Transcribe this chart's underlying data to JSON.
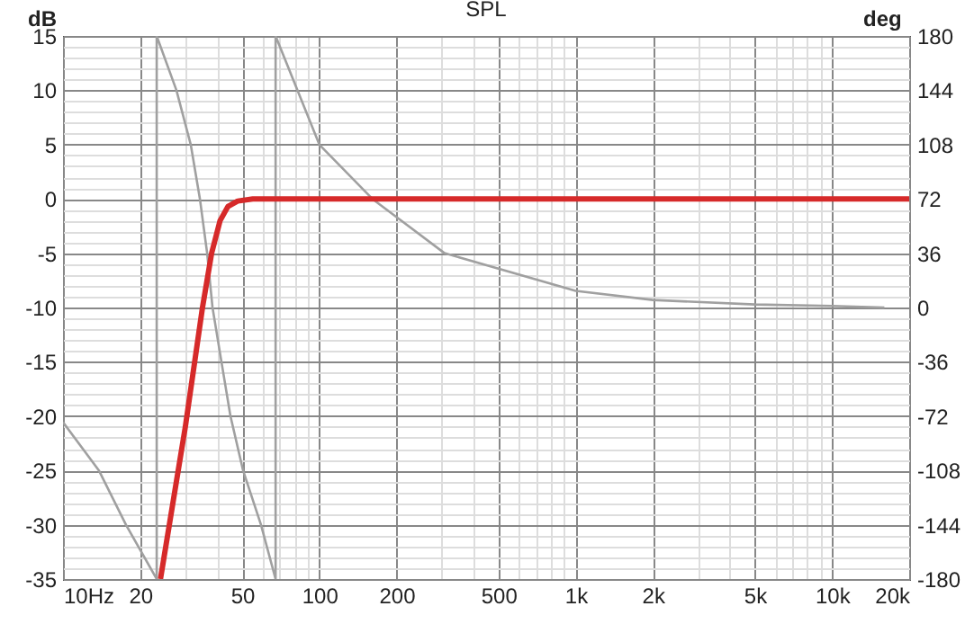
{
  "chart_data": {
    "type": "line",
    "title": "SPL",
    "ylabel": "dB",
    "y2label": "deg",
    "log": "x",
    "grid": true,
    "xlim": [
      10,
      20000
    ],
    "xticks": [
      {
        "value": 10,
        "label": "10Hz"
      },
      {
        "value": 20,
        "label": "20"
      },
      {
        "value": 30,
        "label": null
      },
      {
        "value": 40,
        "label": null
      },
      {
        "value": 50,
        "label": "50"
      },
      {
        "value": 60,
        "label": null
      },
      {
        "value": 70,
        "label": null
      },
      {
        "value": 80,
        "label": null
      },
      {
        "value": 90,
        "label": null
      },
      {
        "value": 100,
        "label": "100"
      },
      {
        "value": 200,
        "label": "200"
      },
      {
        "value": 300,
        "label": null
      },
      {
        "value": 400,
        "label": null
      },
      {
        "value": 500,
        "label": "500"
      },
      {
        "value": 600,
        "label": null
      },
      {
        "value": 700,
        "label": null
      },
      {
        "value": 800,
        "label": null
      },
      {
        "value": 900,
        "label": null
      },
      {
        "value": 1000,
        "label": "1k"
      },
      {
        "value": 2000,
        "label": "2k"
      },
      {
        "value": 3000,
        "label": null
      },
      {
        "value": 4000,
        "label": null
      },
      {
        "value": 5000,
        "label": "5k"
      },
      {
        "value": 6000,
        "label": null
      },
      {
        "value": 7000,
        "label": null
      },
      {
        "value": 8000,
        "label": null
      },
      {
        "value": 9000,
        "label": null
      },
      {
        "value": 10000,
        "label": "10k"
      },
      {
        "value": 20000,
        "label": "20k"
      }
    ],
    "ylim": [
      -35,
      15
    ],
    "yticks": [
      -35,
      {
        "value": -34,
        "label": null
      },
      {
        "value": -33,
        "label": null
      },
      {
        "value": -32,
        "label": null
      },
      {
        "value": -31,
        "label": null
      },
      -30,
      {
        "value": -29,
        "label": null
      },
      {
        "value": -28,
        "label": null
      },
      {
        "value": -27,
        "label": null
      },
      {
        "value": -26,
        "label": null
      },
      -25,
      {
        "value": -24,
        "label": null
      },
      {
        "value": -23,
        "label": null
      },
      {
        "value": -22,
        "label": null
      },
      {
        "value": -21,
        "label": null
      },
      -20,
      {
        "value": -19,
        "label": null
      },
      {
        "value": -18,
        "label": null
      },
      {
        "value": -17,
        "label": null
      },
      {
        "value": -16,
        "label": null
      },
      -15,
      {
        "value": -14,
        "label": null
      },
      {
        "value": -13,
        "label": null
      },
      {
        "value": -12,
        "label": null
      },
      {
        "value": -11,
        "label": null
      },
      -10,
      {
        "value": -9,
        "label": null
      },
      {
        "value": -8,
        "label": null
      },
      {
        "value": -7,
        "label": null
      },
      {
        "value": -6,
        "label": null
      },
      -5,
      {
        "value": -4,
        "label": null
      },
      {
        "value": -3,
        "label": null
      },
      {
        "value": -2,
        "label": null
      },
      {
        "value": -1,
        "label": null
      },
      0,
      {
        "value": 1,
        "label": null
      },
      {
        "value": 2,
        "label": null
      },
      {
        "value": 3,
        "label": null
      },
      {
        "value": 4,
        "label": null
      },
      5,
      {
        "value": 6,
        "label": null
      },
      {
        "value": 7,
        "label": null
      },
      {
        "value": 8,
        "label": null
      },
      {
        "value": 9,
        "label": null
      },
      10,
      {
        "value": 11,
        "label": null
      },
      {
        "value": 12,
        "label": null
      },
      {
        "value": 13,
        "label": null
      },
      {
        "value": 14,
        "label": null
      },
      15
    ],
    "y2lim": [
      -180,
      180
    ],
    "y2ticks": [
      -180,
      -144,
      -108,
      -72,
      -36,
      0,
      36,
      72,
      108,
      144,
      180
    ],
    "series": [
      {
        "color": "#a0a0a0",
        "axis": "y2",
        "x": [
          10,
          13.8,
          17.6,
          23.2,
          23.2,
          27.7,
          31.5,
          34.2,
          36.5,
          38.3,
          41.5,
          45,
          50.4,
          59.2,
          67.5,
          67.5,
          100,
          161,
          308,
          1000,
          2000,
          5000,
          10000,
          16000
        ],
        "values": [
          -76,
          -108,
          -144,
          -180,
          180,
          144,
          108,
          72,
          36,
          0,
          -36,
          -72,
          -108,
          -144,
          -180,
          180,
          108,
          72,
          36,
          11,
          5,
          2,
          1,
          0
        ]
      },
      {
        "color": "#d62a2a",
        "x": [
          24,
          30,
          35,
          38,
          41,
          44,
          48,
          55,
          20000
        ],
        "values": [
          -35,
          -21,
          -10,
          -5,
          -2,
          -0.7,
          -0.2,
          0,
          0
        ]
      }
    ]
  }
}
